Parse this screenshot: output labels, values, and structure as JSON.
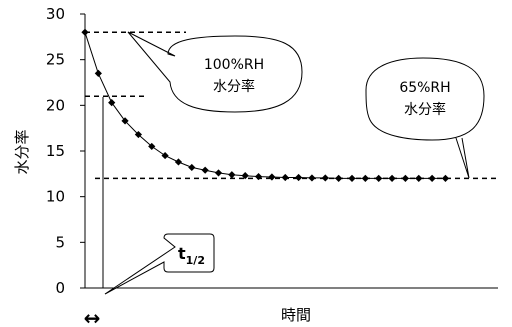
{
  "chart_data": {
    "type": "line",
    "xlabel": "時間",
    "ylabel": "水分率",
    "ylim": [
      0,
      30
    ],
    "yticks": [
      0,
      5,
      10,
      15,
      20,
      25,
      30
    ],
    "grid": false,
    "series": [
      {
        "values": [
          28.0,
          23.5,
          20.3,
          18.3,
          16.8,
          15.5,
          14.5,
          13.8,
          13.2,
          12.9,
          12.6,
          12.4,
          12.3,
          12.2,
          12.15,
          12.1,
          12.1,
          12.05,
          12.05,
          12.0,
          12.0,
          12.0,
          12.0,
          12.0,
          12.0,
          12.0,
          12.0,
          12.0
        ]
      }
    ],
    "reference_lines": [
      {
        "y": 28,
        "style": "dashed"
      },
      {
        "y": 21,
        "style": "dashed"
      },
      {
        "y": 12,
        "style": "dashed"
      }
    ],
    "annotations": [
      {
        "id": "saturated",
        "lines": [
          "100%RH",
          "水分率"
        ],
        "points_to_y": 28
      },
      {
        "id": "equilibrium",
        "lines": [
          "65%RH",
          "水分率"
        ],
        "points_to_y": 12
      },
      {
        "id": "half-time",
        "label_main": "t",
        "label_sub": "1/2"
      }
    ],
    "interval_marker": "↔"
  }
}
